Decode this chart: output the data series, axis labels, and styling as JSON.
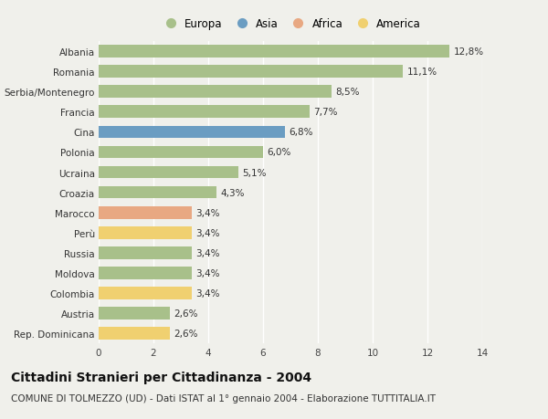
{
  "categories": [
    "Albania",
    "Romania",
    "Serbia/Montenegro",
    "Francia",
    "Cina",
    "Polonia",
    "Ucraina",
    "Croazia",
    "Marocco",
    "Perù",
    "Russia",
    "Moldova",
    "Colombia",
    "Austria",
    "Rep. Dominicana"
  ],
  "values": [
    12.8,
    11.1,
    8.5,
    7.7,
    6.8,
    6.0,
    5.1,
    4.3,
    3.4,
    3.4,
    3.4,
    3.4,
    3.4,
    2.6,
    2.6
  ],
  "labels": [
    "12,8%",
    "11,1%",
    "8,5%",
    "7,7%",
    "6,8%",
    "6,0%",
    "5,1%",
    "4,3%",
    "3,4%",
    "3,4%",
    "3,4%",
    "3,4%",
    "3,4%",
    "2,6%",
    "2,6%"
  ],
  "continent": [
    "Europa",
    "Europa",
    "Europa",
    "Europa",
    "Asia",
    "Europa",
    "Europa",
    "Europa",
    "Africa",
    "America",
    "Europa",
    "Europa",
    "America",
    "Europa",
    "America"
  ],
  "colors": {
    "Europa": "#a8c08a",
    "Asia": "#6b9dc2",
    "Africa": "#e8a882",
    "America": "#f0d070"
  },
  "legend_order": [
    "Europa",
    "Asia",
    "Africa",
    "America"
  ],
  "legend_colors": [
    "#a8c08a",
    "#6b9dc2",
    "#e8a882",
    "#f0d070"
  ],
  "xlim": [
    0,
    14
  ],
  "xticks": [
    0,
    2,
    4,
    6,
    8,
    10,
    12,
    14
  ],
  "title": "Cittadini Stranieri per Cittadinanza - 2004",
  "subtitle": "COMUNE DI TOLMEZZO (UD) - Dati ISTAT al 1° gennaio 2004 - Elaborazione TUTTITALIA.IT",
  "bg_color": "#f0f0eb",
  "bar_height": 0.62,
  "title_fontsize": 10,
  "subtitle_fontsize": 7.5,
  "label_fontsize": 7.5,
  "tick_fontsize": 7.5,
  "grid_color": "#ffffff",
  "axes_bg": "#f0f0eb"
}
